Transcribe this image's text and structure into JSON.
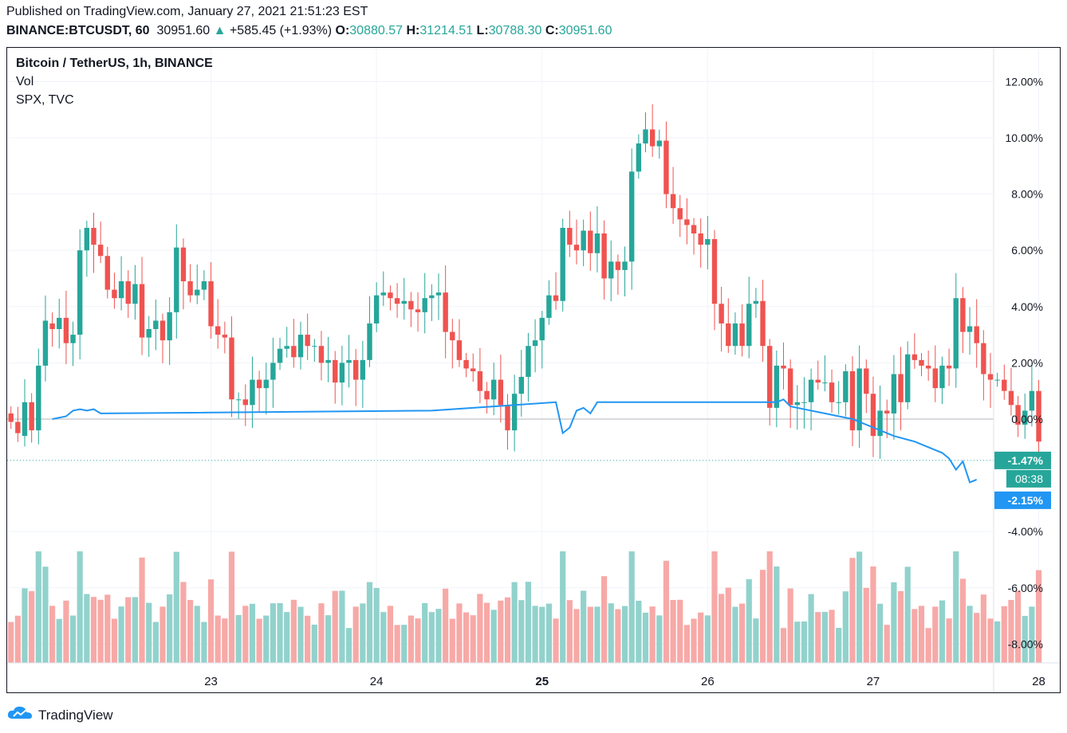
{
  "header": {
    "published": "Published on TradingView.com, January 27, 2021 21:51:23 EST",
    "symbol": "BINANCE:BTCUSDT, 60",
    "last": "30951.60",
    "change": "+585.45 (+1.93%)",
    "o_label": "O:",
    "o_value": "30880.57",
    "h_label": "H:",
    "h_value": "31214.51",
    "l_label": "L:",
    "l_value": "30788.30",
    "c_label": "C:",
    "c_value": "30951.60"
  },
  "legend": {
    "main": "Bitcoin / TetherUS, 1h, BINANCE",
    "vol": "Vol",
    "compare": "SPX, TVC"
  },
  "footer": {
    "brand": "TradingView"
  },
  "colors": {
    "up": "#26a69a",
    "down": "#ef5350",
    "vol_up": "#92d2cc",
    "vol_down": "#f7a9a7",
    "spx": "#2196f3",
    "grid": "#f0f3fa",
    "zero": "#b2b5be"
  },
  "chart_data": {
    "type": "candlestick",
    "title": "Bitcoin / TetherUS, 1h, BINANCE",
    "y_unit": "percent change",
    "ylim": [
      -8.9,
      13.0
    ],
    "y_ticks": [
      12,
      10,
      8,
      6,
      4,
      2,
      0,
      -4,
      -6,
      -8
    ],
    "y_tick_labels": [
      "12.00%",
      "10.00%",
      "8.00%",
      "6.00%",
      "4.00%",
      "2.00%",
      "0.00%",
      "-4.00%",
      "-6.00%",
      "-8.00%"
    ],
    "x_ticks": [
      {
        "label": "23",
        "bar": 29,
        "bold": false
      },
      {
        "label": "24",
        "bar": 53,
        "bold": false
      },
      {
        "label": "25",
        "bar": 77,
        "bold": true
      },
      {
        "label": "26",
        "bar": 101,
        "bold": false
      },
      {
        "label": "27",
        "bar": 125,
        "bold": false
      },
      {
        "label": "28",
        "bar": 149,
        "bold": false
      }
    ],
    "grid": true,
    "last_price_badge": {
      "label": "-1.47%",
      "value": -1.47
    },
    "countdown_badge": "08:38",
    "spx_badge": {
      "label": "-2.15%",
      "value": -2.15
    },
    "candles_oc": [
      [
        0.2,
        -0.1
      ],
      [
        -0.1,
        -0.5
      ],
      [
        -0.6,
        0.6
      ],
      [
        0.6,
        -0.4
      ],
      [
        -0.4,
        1.9
      ],
      [
        1.9,
        3.5
      ],
      [
        3.4,
        3.2
      ],
      [
        3.2,
        3.6
      ],
      [
        3.6,
        2.7
      ],
      [
        2.7,
        3.0
      ],
      [
        3.0,
        6.0
      ],
      [
        6.0,
        6.8
      ],
      [
        6.8,
        6.2
      ],
      [
        6.2,
        5.8
      ],
      [
        5.8,
        4.6
      ],
      [
        4.6,
        4.3
      ],
      [
        4.3,
        4.9
      ],
      [
        4.9,
        4.1
      ],
      [
        4.1,
        4.8
      ],
      [
        4.8,
        2.9
      ],
      [
        2.9,
        3.2
      ],
      [
        3.2,
        3.5
      ],
      [
        3.5,
        2.8
      ],
      [
        2.8,
        3.8
      ],
      [
        3.8,
        6.1
      ],
      [
        6.1,
        4.9
      ],
      [
        4.9,
        4.4
      ],
      [
        4.4,
        4.6
      ],
      [
        4.6,
        4.9
      ],
      [
        4.9,
        3.3
      ],
      [
        3.3,
        3.0
      ],
      [
        3.0,
        2.9
      ],
      [
        2.9,
        0.7
      ],
      [
        0.7,
        0.7
      ],
      [
        0.7,
        0.5
      ],
      [
        0.5,
        1.4
      ],
      [
        1.4,
        1.1
      ],
      [
        1.1,
        1.4
      ],
      [
        1.4,
        2.0
      ],
      [
        2.0,
        2.5
      ],
      [
        2.5,
        2.6
      ],
      [
        2.6,
        2.2
      ],
      [
        2.2,
        3.0
      ],
      [
        3.0,
        2.6
      ],
      [
        2.6,
        2.6
      ],
      [
        2.6,
        2.0
      ],
      [
        2.0,
        2.1
      ],
      [
        2.1,
        1.3
      ],
      [
        1.3,
        2.0
      ],
      [
        2.0,
        2.1
      ],
      [
        2.1,
        1.4
      ],
      [
        1.4,
        2.1
      ],
      [
        2.1,
        3.4
      ],
      [
        3.4,
        4.4
      ],
      [
        4.4,
        4.5
      ],
      [
        4.5,
        4.3
      ],
      [
        4.3,
        4.1
      ],
      [
        4.1,
        4.2
      ],
      [
        4.2,
        3.9
      ],
      [
        3.9,
        3.8
      ],
      [
        3.8,
        4.3
      ],
      [
        4.3,
        4.4
      ],
      [
        4.4,
        4.5
      ],
      [
        4.5,
        3.1
      ],
      [
        3.1,
        2.8
      ],
      [
        2.8,
        2.1
      ],
      [
        2.1,
        1.8
      ],
      [
        1.8,
        1.7
      ],
      [
        1.7,
        1.0
      ],
      [
        1.0,
        0.7
      ],
      [
        0.7,
        1.4
      ],
      [
        1.4,
        0.5
      ],
      [
        0.5,
        -0.4
      ],
      [
        -0.4,
        0.9
      ],
      [
        0.9,
        1.5
      ],
      [
        1.5,
        2.6
      ],
      [
        2.6,
        2.8
      ],
      [
        2.8,
        3.6
      ],
      [
        3.6,
        4.4
      ],
      [
        4.4,
        4.2
      ],
      [
        4.2,
        6.8
      ],
      [
        6.8,
        6.2
      ],
      [
        6.2,
        6.0
      ],
      [
        6.0,
        6.7
      ],
      [
        6.7,
        5.9
      ],
      [
        5.9,
        6.6
      ],
      [
        6.6,
        5.0
      ],
      [
        5.0,
        5.6
      ],
      [
        5.6,
        5.3
      ],
      [
        5.3,
        5.6
      ],
      [
        5.6,
        8.8
      ],
      [
        8.8,
        9.8
      ],
      [
        9.8,
        10.3
      ],
      [
        10.3,
        9.7
      ],
      [
        9.7,
        9.9
      ],
      [
        9.9,
        8.0
      ],
      [
        8.0,
        7.5
      ],
      [
        7.5,
        7.1
      ],
      [
        7.1,
        6.9
      ],
      [
        6.9,
        6.6
      ],
      [
        6.6,
        6.2
      ],
      [
        6.2,
        6.4
      ],
      [
        6.4,
        4.1
      ],
      [
        4.1,
        3.4
      ],
      [
        3.4,
        2.6
      ],
      [
        2.6,
        3.4
      ],
      [
        3.4,
        2.6
      ],
      [
        2.6,
        4.1
      ],
      [
        4.1,
        4.2
      ],
      [
        4.2,
        2.6
      ],
      [
        2.6,
        0.4
      ],
      [
        0.4,
        1.9
      ],
      [
        1.9,
        1.8
      ],
      [
        1.8,
        0.5
      ],
      [
        0.5,
        0.6
      ],
      [
        0.6,
        0.6
      ],
      [
        0.6,
        1.4
      ],
      [
        1.4,
        1.3
      ],
      [
        1.3,
        1.3
      ],
      [
        1.3,
        0.6
      ],
      [
        0.6,
        0.6
      ],
      [
        0.6,
        1.7
      ],
      [
        1.7,
        -0.4
      ],
      [
        -0.4,
        1.8
      ],
      [
        1.8,
        0.9
      ],
      [
        0.9,
        -0.6
      ],
      [
        -0.6,
        0.3
      ],
      [
        0.3,
        0.2
      ],
      [
        0.2,
        1.6
      ],
      [
        1.6,
        0.6
      ],
      [
        0.6,
        2.3
      ],
      [
        2.3,
        2.1
      ],
      [
        2.1,
        1.9
      ],
      [
        1.9,
        1.8
      ],
      [
        1.8,
        1.1
      ],
      [
        1.1,
        1.9
      ],
      [
        1.9,
        1.8
      ],
      [
        1.8,
        4.3
      ],
      [
        4.3,
        3.1
      ],
      [
        3.1,
        3.3
      ],
      [
        3.3,
        2.7
      ],
      [
        2.7,
        1.6
      ],
      [
        1.6,
        1.4
      ],
      [
        1.4,
        1.4
      ],
      [
        1.4,
        1.0
      ],
      [
        1.0,
        0.5
      ],
      [
        0.5,
        -0.2
      ],
      [
        -0.2,
        0.3
      ],
      [
        0.3,
        1.0
      ],
      [
        1.0,
        -0.8
      ]
    ]
  }
}
